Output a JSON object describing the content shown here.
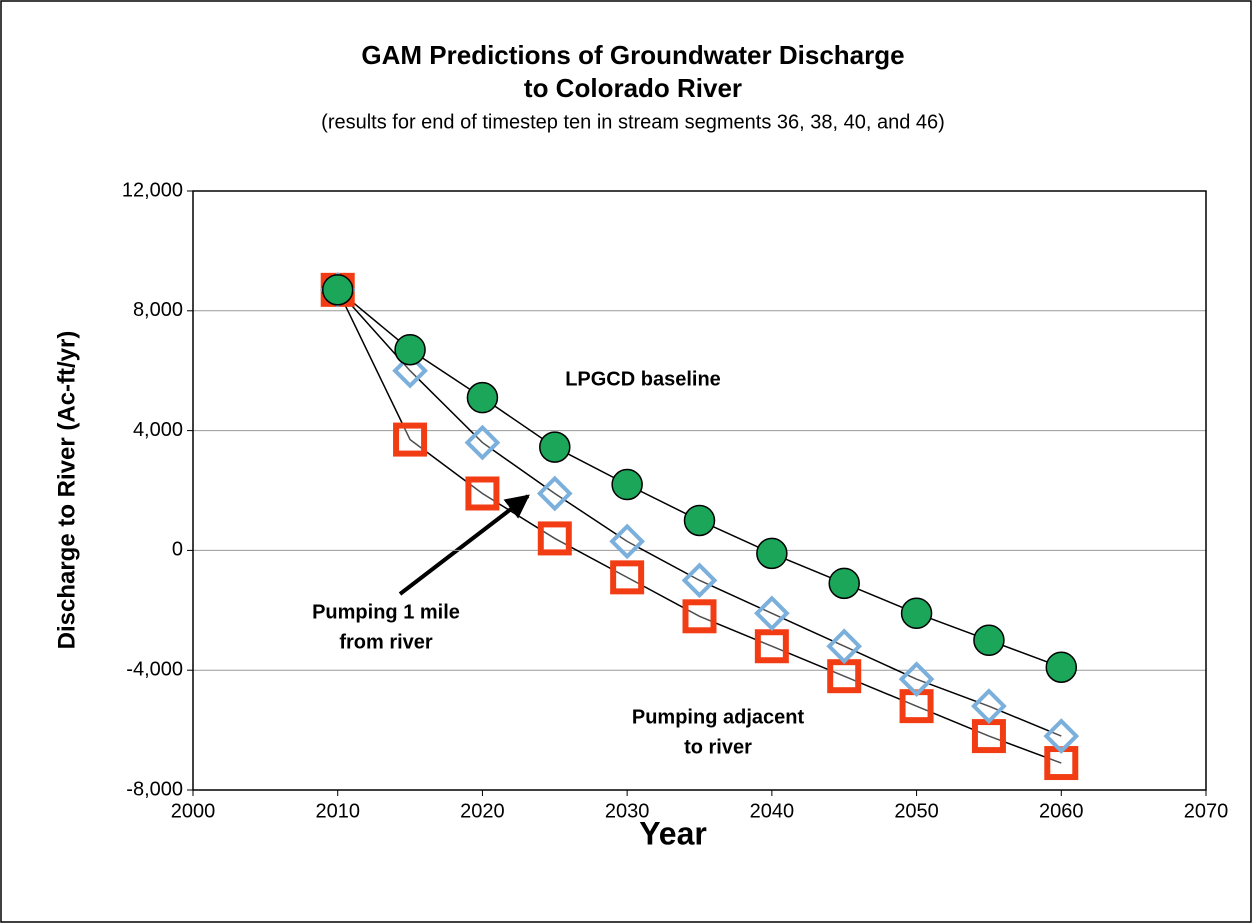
{
  "chart_data": {
    "type": "line",
    "title": [
      "GAM Predictions of Groundwater Discharge",
      "to Colorado River"
    ],
    "subtitle": "(results for end of timestep ten in stream segments 36, 38, 40, and 46)",
    "x_label": "Year",
    "y_label": "Discharge to River (Ac-ft/yr)",
    "x": [
      2010,
      2015,
      2020,
      2025,
      2030,
      2035,
      2040,
      2045,
      2050,
      2055,
      2060
    ],
    "series": [
      {
        "name": "LPGCD baseline",
        "color": "#1ba65a",
        "marker": "circle",
        "values": [
          8700,
          6700,
          5100,
          3450,
          2200,
          1000,
          -100,
          -1100,
          -2100,
          -3000,
          -3900
        ]
      },
      {
        "name": "Pumping 1 mile from river",
        "color": "#7bafdc",
        "marker": "diamond",
        "values": [
          8700,
          6000,
          3600,
          1900,
          300,
          -1000,
          -2100,
          -3200,
          -4300,
          -5200,
          -6200
        ]
      },
      {
        "name": "Pumping adjacent to river",
        "color": "#f23d14",
        "marker": "square",
        "values": [
          8700,
          3700,
          1900,
          400,
          -900,
          -2200,
          -3200,
          -4200,
          -5200,
          -6200,
          -7100
        ]
      }
    ],
    "annotations": [
      [
        "LPGCD baseline"
      ],
      [
        "Pumping 1 mile",
        "from river"
      ],
      [
        "Pumping adjacent",
        "to river"
      ]
    ],
    "xlim": [
      2000,
      2070
    ],
    "xticks": [
      2000,
      2010,
      2020,
      2030,
      2040,
      2050,
      2060,
      2070
    ],
    "ylim": [
      -8000,
      12000
    ],
    "yticks": [
      {
        "value": -8000,
        "label": "-8,000"
      },
      {
        "value": -4000,
        "label": "-4,000"
      },
      0,
      {
        "value": 4000,
        "label": "4,000"
      },
      {
        "value": 8000,
        "label": "8,000"
      },
      {
        "value": 12000,
        "label": "12,000"
      }
    ],
    "grid": true
  }
}
